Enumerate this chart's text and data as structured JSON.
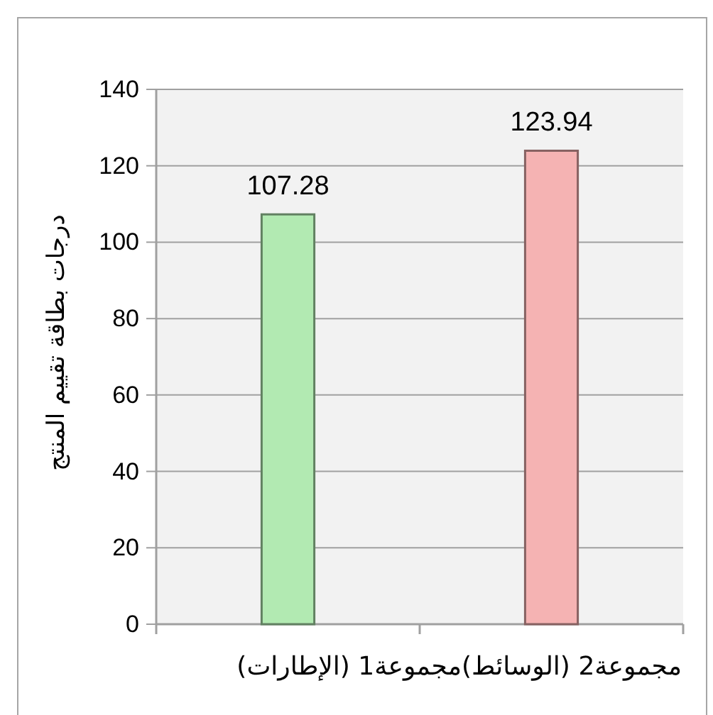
{
  "chart_data": {
    "type": "bar",
    "xlabel": "مجموعة2 (الوسائط)مجموعة1 (الإطارات)",
    "ylabel": "درجات بطاقة تقييم المنتج",
    "categories": [
      null,
      null
    ],
    "values": [
      107.28,
      123.94
    ],
    "colors": [
      "#b2eab2",
      "#f5b3b3"
    ],
    "ylim": [
      0,
      140
    ],
    "yticks": [
      0,
      20,
      40,
      60,
      80,
      100,
      120,
      140
    ],
    "grid": "y",
    "data_labels": true
  }
}
